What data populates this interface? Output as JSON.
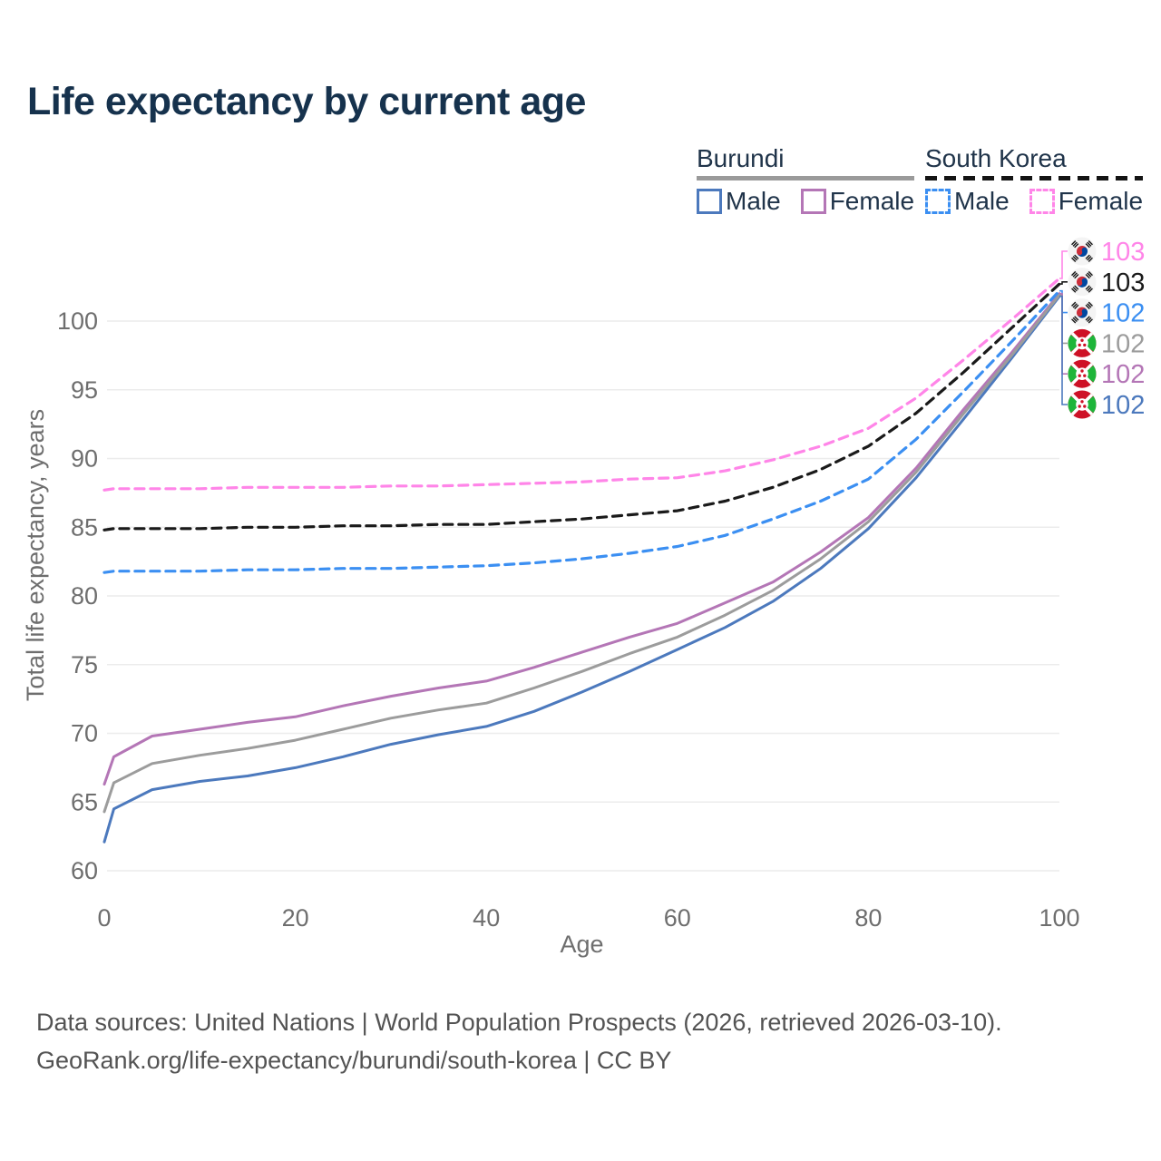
{
  "title": "Life expectancy by current age",
  "legend": {
    "groups": [
      {
        "label": "Burundi",
        "line_style": "solid",
        "rule_color": "#9a9a9a",
        "items": [
          {
            "label": "Male",
            "color": "#4c79bd",
            "dash": false
          },
          {
            "label": "Female",
            "color": "#b476b6",
            "dash": false
          }
        ]
      },
      {
        "label": "South Korea",
        "line_style": "dashed",
        "rule_color": "#141414",
        "items": [
          {
            "label": "Male",
            "color": "#3b8ff2",
            "dash": true
          },
          {
            "label": "Female",
            "color": "#ff85e8",
            "dash": true
          }
        ]
      }
    ]
  },
  "chart_data": {
    "type": "line",
    "title": "Life expectancy by current age",
    "xlabel": "Age",
    "ylabel": "Total life expectancy, years",
    "xlim": [
      0,
      100
    ],
    "ylim": [
      58.5,
      105.5
    ],
    "xticks": [
      0,
      20,
      40,
      60,
      80,
      100
    ],
    "yticks": [
      100,
      95,
      90,
      85,
      80,
      75,
      70,
      65,
      60
    ],
    "grid": "horizontal",
    "watermark": "100",
    "x": [
      0,
      1,
      5,
      10,
      15,
      20,
      25,
      30,
      35,
      40,
      45,
      50,
      55,
      60,
      65,
      70,
      75,
      80,
      85,
      90,
      95,
      100
    ],
    "series": [
      {
        "name": "South Korea Female",
        "country": "South Korea",
        "sex": "Female",
        "color": "#ff85e8",
        "dash": true,
        "flag": "kr",
        "end_label": "103",
        "values": [
          87.7,
          87.8,
          87.8,
          87.8,
          87.9,
          87.9,
          87.9,
          88.0,
          88.0,
          88.1,
          88.2,
          88.3,
          88.5,
          88.6,
          89.1,
          89.9,
          90.9,
          92.2,
          94.4,
          97.2,
          100.1,
          103.1
        ]
      },
      {
        "name": "South Korea Both sexes",
        "country": "South Korea",
        "sex": "Both",
        "color": "#1a1a1a",
        "dash": true,
        "flag": "kr",
        "end_label": "103",
        "values": [
          84.8,
          84.9,
          84.9,
          84.9,
          85.0,
          85.0,
          85.1,
          85.1,
          85.2,
          85.2,
          85.4,
          85.6,
          85.9,
          86.2,
          86.9,
          87.9,
          89.2,
          90.9,
          93.3,
          96.3,
          99.5,
          102.7
        ]
      },
      {
        "name": "South Korea Male",
        "country": "South Korea",
        "sex": "Male",
        "color": "#3b8ff2",
        "dash": true,
        "flag": "kr",
        "end_label": "102",
        "values": [
          81.7,
          81.8,
          81.8,
          81.8,
          81.9,
          81.9,
          82.0,
          82.0,
          82.1,
          82.2,
          82.4,
          82.7,
          83.1,
          83.6,
          84.4,
          85.6,
          86.9,
          88.5,
          91.4,
          94.9,
          98.5,
          102.2
        ]
      },
      {
        "name": "Burundi Both sexes",
        "country": "Burundi",
        "sex": "Both",
        "color": "#9c9c9c",
        "dash": false,
        "flag": "bi",
        "end_label": "102",
        "values": [
          64.3,
          66.4,
          67.8,
          68.4,
          68.9,
          69.5,
          70.3,
          71.1,
          71.7,
          72.2,
          73.3,
          74.5,
          75.8,
          77.0,
          78.6,
          80.4,
          82.7,
          85.4,
          89.0,
          93.3,
          97.5,
          101.9
        ]
      },
      {
        "name": "Burundi Female",
        "country": "Burundi",
        "sex": "Female",
        "color": "#b476b6",
        "dash": false,
        "flag": "bi",
        "end_label": "102",
        "values": [
          66.3,
          68.3,
          69.8,
          70.3,
          70.8,
          71.2,
          72.0,
          72.7,
          73.3,
          73.8,
          74.8,
          75.9,
          77.0,
          78.0,
          79.5,
          81.0,
          83.2,
          85.7,
          89.3,
          93.6,
          97.7,
          102.0
        ]
      },
      {
        "name": "Burundi Male",
        "country": "Burundi",
        "sex": "Male",
        "color": "#4c79bd",
        "dash": false,
        "flag": "bi",
        "end_label": "102",
        "values": [
          62.1,
          64.5,
          65.9,
          66.5,
          66.9,
          67.5,
          68.3,
          69.2,
          69.9,
          70.5,
          71.6,
          73.0,
          74.5,
          76.1,
          77.7,
          79.6,
          82.0,
          84.9,
          88.6,
          92.9,
          97.3,
          101.8
        ]
      }
    ]
  },
  "colors": {
    "title": "#16324d",
    "axis_text": "#6e6e6e",
    "gridline": "#ececec",
    "watermark": "#c8c8c8",
    "footer_text": "#535353"
  },
  "footer": {
    "line1": "Data sources: United Nations | World Population Prospects (2026, retrieved 2026-03-10).",
    "line2": "GeoRank.org/life-expectancy/burundi/south-korea | CC BY"
  }
}
